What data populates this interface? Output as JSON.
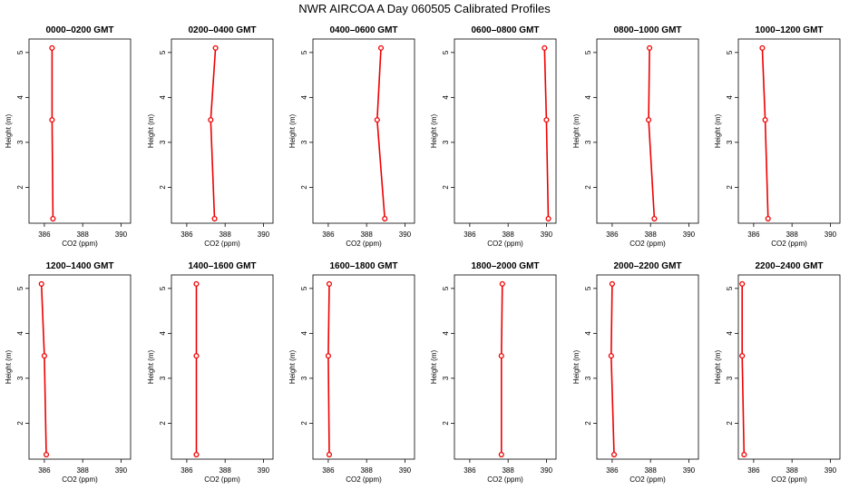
{
  "title": "NWR AIRCOA A  Day 060505  Calibrated Profiles",
  "chart_data": [
    {
      "type": "line",
      "title": "0000–0200 GMT",
      "xlabel": "CO2 (ppm)",
      "ylabel": "Height (m)",
      "xlim": [
        385.2,
        390.5
      ],
      "ylim": [
        1.2,
        5.3
      ],
      "xticks": [
        386,
        388,
        390
      ],
      "yticks": [
        2,
        3,
        4,
        5
      ],
      "x": [
        386.4,
        386.4,
        386.45
      ],
      "y": [
        5.1,
        3.5,
        1.3
      ]
    },
    {
      "type": "line",
      "title": "0200–0400 GMT",
      "xlabel": "CO2 (ppm)",
      "ylabel": "Height (m)",
      "xlim": [
        385.2,
        390.5
      ],
      "ylim": [
        1.2,
        5.3
      ],
      "xticks": [
        386,
        388,
        390
      ],
      "yticks": [
        2,
        3,
        4,
        5
      ],
      "x": [
        387.5,
        387.25,
        387.45
      ],
      "y": [
        5.1,
        3.5,
        1.3
      ]
    },
    {
      "type": "line",
      "title": "0400–0600 GMT",
      "xlabel": "CO2 (ppm)",
      "ylabel": "Height (m)",
      "xlim": [
        385.2,
        390.5
      ],
      "ylim": [
        1.2,
        5.3
      ],
      "xticks": [
        386,
        388,
        390
      ],
      "yticks": [
        2,
        3,
        4,
        5
      ],
      "x": [
        388.75,
        388.55,
        388.95
      ],
      "y": [
        5.1,
        3.5,
        1.3
      ]
    },
    {
      "type": "line",
      "title": "0600–0800 GMT",
      "xlabel": "CO2 (ppm)",
      "ylabel": "Height (m)",
      "xlim": [
        385.2,
        390.5
      ],
      "ylim": [
        1.2,
        5.3
      ],
      "xticks": [
        386,
        388,
        390
      ],
      "yticks": [
        2,
        3,
        4,
        5
      ],
      "x": [
        389.9,
        390.0,
        390.1
      ],
      "y": [
        5.1,
        3.5,
        1.3
      ]
    },
    {
      "type": "line",
      "title": "0800–1000 GMT",
      "xlabel": "CO2 (ppm)",
      "ylabel": "Height (m)",
      "xlim": [
        385.2,
        390.5
      ],
      "ylim": [
        1.2,
        5.3
      ],
      "xticks": [
        386,
        388,
        390
      ],
      "yticks": [
        2,
        3,
        4,
        5
      ],
      "x": [
        387.95,
        387.9,
        388.2
      ],
      "y": [
        5.1,
        3.5,
        1.3
      ]
    },
    {
      "type": "line",
      "title": "1000–1200 GMT",
      "xlabel": "CO2 (ppm)",
      "ylabel": "Height (m)",
      "xlim": [
        385.2,
        390.5
      ],
      "ylim": [
        1.2,
        5.3
      ],
      "xticks": [
        386,
        388,
        390
      ],
      "yticks": [
        2,
        3,
        4,
        5
      ],
      "x": [
        386.45,
        386.6,
        386.75
      ],
      "y": [
        5.1,
        3.5,
        1.3
      ]
    },
    {
      "type": "line",
      "title": "1200–1400 GMT",
      "xlabel": "CO2 (ppm)",
      "ylabel": "Height (m)",
      "xlim": [
        385.2,
        390.5
      ],
      "ylim": [
        1.2,
        5.3
      ],
      "xticks": [
        386,
        388,
        390
      ],
      "yticks": [
        2,
        3,
        4,
        5
      ],
      "x": [
        385.85,
        386.0,
        386.1
      ],
      "y": [
        5.1,
        3.5,
        1.3
      ]
    },
    {
      "type": "line",
      "title": "1400–1600 GMT",
      "xlabel": "CO2 (ppm)",
      "ylabel": "Height (m)",
      "xlim": [
        385.2,
        390.5
      ],
      "ylim": [
        1.2,
        5.3
      ],
      "xticks": [
        386,
        388,
        390
      ],
      "yticks": [
        2,
        3,
        4,
        5
      ],
      "x": [
        386.5,
        386.5,
        386.5
      ],
      "y": [
        5.1,
        3.5,
        1.3
      ]
    },
    {
      "type": "line",
      "title": "1600–1800 GMT",
      "xlabel": "CO2 (ppm)",
      "ylabel": "Height (m)",
      "xlim": [
        385.2,
        390.5
      ],
      "ylim": [
        1.2,
        5.3
      ],
      "xticks": [
        386,
        388,
        390
      ],
      "yticks": [
        2,
        3,
        4,
        5
      ],
      "x": [
        386.05,
        386.0,
        386.05
      ],
      "y": [
        5.1,
        3.5,
        1.3
      ]
    },
    {
      "type": "line",
      "title": "1800–2000 GMT",
      "xlabel": "CO2 (ppm)",
      "ylabel": "Height (m)",
      "xlim": [
        385.2,
        390.5
      ],
      "ylim": [
        1.2,
        5.3
      ],
      "xticks": [
        386,
        388,
        390
      ],
      "yticks": [
        2,
        3,
        4,
        5
      ],
      "x": [
        387.7,
        387.65,
        387.65
      ],
      "y": [
        5.1,
        3.5,
        1.3
      ]
    },
    {
      "type": "line",
      "title": "2000–2200 GMT",
      "xlabel": "CO2 (ppm)",
      "ylabel": "Height (m)",
      "xlim": [
        385.2,
        390.5
      ],
      "ylim": [
        1.2,
        5.3
      ],
      "xticks": [
        386,
        388,
        390
      ],
      "yticks": [
        2,
        3,
        4,
        5
      ],
      "x": [
        386.0,
        385.95,
        386.1
      ],
      "y": [
        5.1,
        3.5,
        1.3
      ]
    },
    {
      "type": "line",
      "title": "2200–2400 GMT",
      "xlabel": "CO2 (ppm)",
      "ylabel": "Height (m)",
      "xlim": [
        385.2,
        390.5
      ],
      "ylim": [
        1.2,
        5.3
      ],
      "xticks": [
        386,
        388,
        390
      ],
      "yticks": [
        2,
        3,
        4,
        5
      ],
      "x": [
        385.4,
        385.4,
        385.5
      ],
      "y": [
        5.1,
        3.5,
        1.3
      ]
    }
  ],
  "colors": {
    "series": "#ee0000",
    "axis": "#000000"
  }
}
